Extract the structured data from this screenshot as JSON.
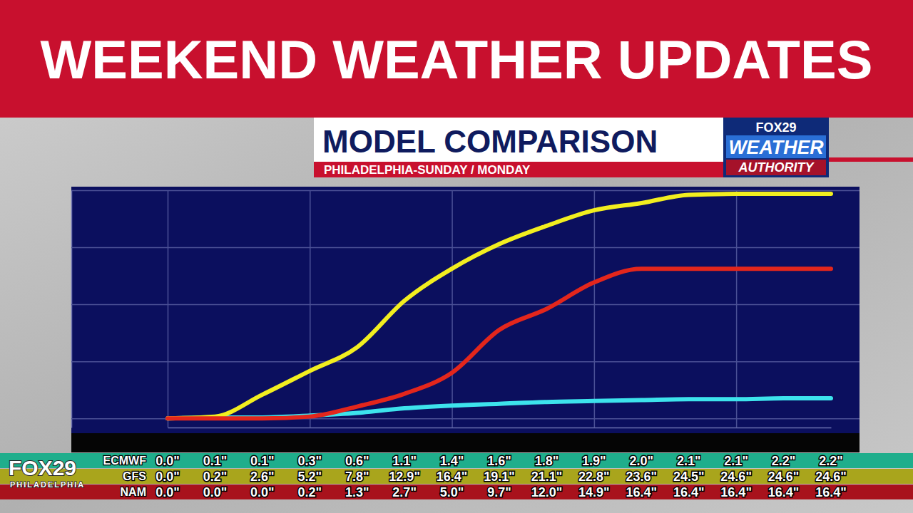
{
  "header": {
    "banner": "WEEKEND WEATHER UPDATES"
  },
  "branding": {
    "weather_logo": [
      "FOX29",
      "WEATHER",
      "AUTHORITY"
    ],
    "station_logo": [
      "FOX29",
      "PHILADELPHIA"
    ]
  },
  "chart_data": {
    "type": "line",
    "title": "MODEL COMPARISON",
    "subtitle": "PHILADELPHIA-SUNDAY / MONDAY",
    "categories": [
      null,
      null,
      null,
      null,
      null,
      null,
      null,
      null,
      null,
      null,
      null,
      null,
      null,
      null,
      null
    ],
    "series": [
      {
        "name": "ECMWF",
        "color": "#3de3ec",
        "values": [
          0.0,
          0.1,
          0.1,
          0.3,
          0.6,
          1.1,
          1.4,
          1.6,
          1.8,
          1.9,
          2.0,
          2.1,
          2.1,
          2.2,
          2.2
        ],
        "value_labels": [
          "0.0\"",
          "0.1\"",
          "0.1\"",
          "0.3\"",
          "0.6\"",
          "1.1\"",
          "1.4\"",
          "1.6\"",
          "1.8\"",
          "1.9\"",
          "2.0\"",
          "2.1\"",
          "2.1\"",
          "2.2\"",
          "2.2\""
        ]
      },
      {
        "name": "GFS",
        "color": "#f2ee1f",
        "values": [
          0.0,
          0.2,
          2.6,
          5.2,
          7.8,
          12.9,
          16.4,
          19.1,
          21.1,
          22.8,
          23.6,
          24.5,
          24.6,
          24.6,
          24.6
        ],
        "value_labels": [
          "0.0\"",
          "0.2\"",
          "2.6\"",
          "5.2\"",
          "7.8\"",
          "12.9\"",
          "16.4\"",
          "19.1\"",
          "21.1\"",
          "22.8\"",
          "23.6\"",
          "24.5\"",
          "24.6\"",
          "24.6\"",
          "24.6\""
        ]
      },
      {
        "name": "NAM",
        "color": "#e3261c",
        "values": [
          0.0,
          0.0,
          0.0,
          0.2,
          1.3,
          2.7,
          5.0,
          9.7,
          12.0,
          14.9,
          16.4,
          16.4,
          16.4,
          16.4,
          16.4
        ],
        "value_labels": [
          "0.0\"",
          "0.0\"",
          "0.0\"",
          "0.2\"",
          "1.3\"",
          "2.7\"",
          "5.0\"",
          "9.7\"",
          "12.0\"",
          "14.9\"",
          "16.4\"",
          "16.4\"",
          "16.4\"",
          "16.4\"",
          "16.4\""
        ]
      }
    ],
    "ylim": [
      -1,
      25
    ],
    "yticks": [
      0,
      6.25,
      12.5,
      18.75,
      25
    ],
    "grid": true,
    "tick_labels": false,
    "data_labels": true
  }
}
